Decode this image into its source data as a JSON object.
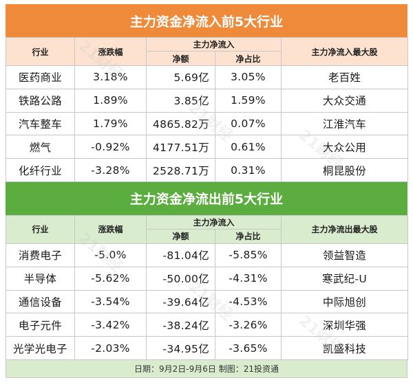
{
  "inflow": {
    "title": "主力资金净流入前5大行业",
    "headers": {
      "industry": "行业",
      "change": "涨跌幅",
      "group": "主力净流入",
      "amount": "净额",
      "ratio": "净占比",
      "top_stock": "主力净流入最大股"
    },
    "rows": [
      {
        "industry": "医药商业",
        "change": "3.18%",
        "amount": "5.69亿",
        "ratio": "3.05%",
        "stock": "老百姓"
      },
      {
        "industry": "铁路公路",
        "change": "1.89%",
        "amount": "3.85亿",
        "ratio": "1.59%",
        "stock": "大众交通"
      },
      {
        "industry": "汽车整车",
        "change": "1.79%",
        "amount": "4865.82万",
        "ratio": "0.07%",
        "stock": "江淮汽车"
      },
      {
        "industry": "燃气",
        "change": "-0.92%",
        "amount": "4177.51万",
        "ratio": "0.61%",
        "stock": "大众公用"
      },
      {
        "industry": "化纤行业",
        "change": "-3.28%",
        "amount": "2528.71万",
        "ratio": "0.31%",
        "stock": "桐昆股份"
      }
    ]
  },
  "outflow": {
    "title": "主力资金净流出前5大行业",
    "headers": {
      "industry": "行业",
      "change": "涨跌幅",
      "group": "主力净流入",
      "amount": "净额",
      "ratio": "净占比",
      "top_stock": "主力净流出最大股"
    },
    "rows": [
      {
        "industry": "消费电子",
        "change": "-5.0%",
        "amount": "-81.04亿",
        "ratio": "-5.85%",
        "stock": "领益智造"
      },
      {
        "industry": "半导体",
        "change": "-5.62%",
        "amount": "-50.00亿",
        "ratio": "-4.31%",
        "stock": "寒武纪-U"
      },
      {
        "industry": "通信设备",
        "change": "-3.54%",
        "amount": "-39.64亿",
        "ratio": "-4.53%",
        "stock": "中际旭创"
      },
      {
        "industry": "电子元件",
        "change": "-3.42%",
        "amount": "-38.24亿",
        "ratio": "-3.26%",
        "stock": "深圳华强"
      },
      {
        "industry": "光学光电子",
        "change": "-2.03%",
        "amount": "-34.95亿",
        "ratio": "-3.65%",
        "stock": "凯盛科技"
      }
    ]
  },
  "footer": "日期：9月2日-9月6日 制图：21投资通",
  "watermark": "21财经",
  "colors": {
    "inflow_banner": "#ee8a3a",
    "inflow_header": "#fde3cf",
    "outflow_banner": "#5cad3f",
    "outflow_header": "#d9ecce"
  }
}
